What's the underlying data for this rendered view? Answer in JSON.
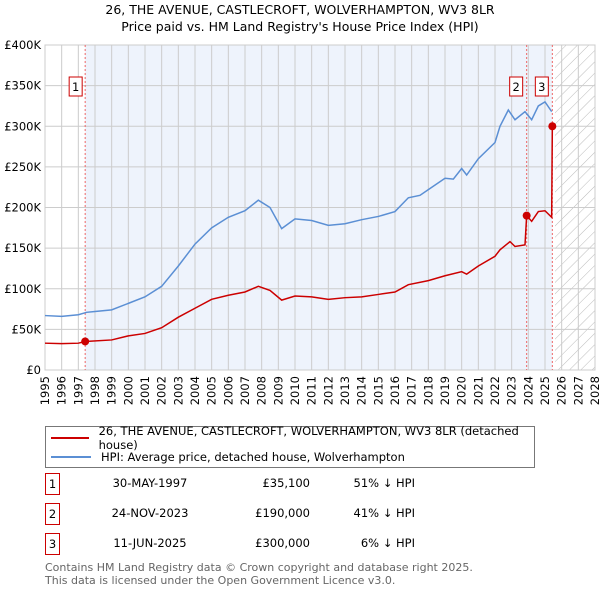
{
  "chart_data": {
    "type": "line",
    "title": "26, THE AVENUE, CASTLECROFT, WOLVERHAMPTON, WV3 8LR",
    "subtitle": "Price paid vs. HM Land Registry's House Price Index (HPI)",
    "xlim": [
      1995,
      2028
    ],
    "ylim": [
      0,
      400000
    ],
    "x_ticks": [
      "1995",
      "1996",
      "1997",
      "1998",
      "1999",
      "2000",
      "2001",
      "2002",
      "2003",
      "2004",
      "2005",
      "2006",
      "2007",
      "2008",
      "2009",
      "2010",
      "2011",
      "2012",
      "2013",
      "2014",
      "2015",
      "2016",
      "2017",
      "2018",
      "2019",
      "2020",
      "2021",
      "2022",
      "2023",
      "2024",
      "2025",
      "2026",
      "2027",
      "2028"
    ],
    "y_ticks": [
      {
        "v": 0,
        "label": "£0"
      },
      {
        "v": 50000,
        "label": "£50K"
      },
      {
        "v": 100000,
        "label": "£100K"
      },
      {
        "v": 150000,
        "label": "£150K"
      },
      {
        "v": 200000,
        "label": "£200K"
      },
      {
        "v": 250000,
        "label": "£250K"
      },
      {
        "v": 300000,
        "label": "£300K"
      },
      {
        "v": 350000,
        "label": "£350K"
      },
      {
        "v": 400000,
        "label": "£400K"
      }
    ],
    "grid": true,
    "series": [
      {
        "name": "26, THE AVENUE, CASTLECROFT, WOLVERHAMPTON, WV3 8LR (detached house)",
        "color": "#cc0000",
        "points": [
          [
            1995,
            33000
          ],
          [
            1996,
            32500
          ],
          [
            1997,
            33000
          ],
          [
            1997.41,
            35100
          ],
          [
            1999,
            37000
          ],
          [
            2000,
            42000
          ],
          [
            2001,
            45000
          ],
          [
            2002,
            52000
          ],
          [
            2003,
            65000
          ],
          [
            2004,
            76000
          ],
          [
            2005,
            87000
          ],
          [
            2006,
            92000
          ],
          [
            2007,
            96000
          ],
          [
            2007.8,
            103000
          ],
          [
            2008.5,
            98000
          ],
          [
            2009.2,
            86000
          ],
          [
            2010,
            91000
          ],
          [
            2011,
            90000
          ],
          [
            2012,
            87000
          ],
          [
            2013,
            89000
          ],
          [
            2014,
            90000
          ],
          [
            2015,
            93000
          ],
          [
            2016,
            96000
          ],
          [
            2016.8,
            105000
          ],
          [
            2018,
            110000
          ],
          [
            2019,
            116000
          ],
          [
            2020,
            121000
          ],
          [
            2020.3,
            118000
          ],
          [
            2021,
            128000
          ],
          [
            2022,
            140000
          ],
          [
            2022.3,
            148000
          ],
          [
            2022.9,
            158000
          ],
          [
            2023.2,
            152000
          ],
          [
            2023.8,
            154000
          ],
          [
            2023.9,
            190000
          ],
          [
            2024.2,
            183000
          ],
          [
            2024.6,
            195000
          ],
          [
            2025,
            196000
          ],
          [
            2025.4,
            188000
          ],
          [
            2025.44,
            300000
          ]
        ]
      },
      {
        "name": "HPI: Average price, detached house, Wolverhampton",
        "color": "#5b8fd4",
        "points": [
          [
            1995,
            67000
          ],
          [
            1996,
            66000
          ],
          [
            1997,
            68000
          ],
          [
            1997.5,
            71000
          ],
          [
            1998,
            72000
          ],
          [
            1999,
            74000
          ],
          [
            2000,
            82000
          ],
          [
            2001,
            90000
          ],
          [
            2002,
            103000
          ],
          [
            2003,
            128000
          ],
          [
            2004,
            155000
          ],
          [
            2005,
            175000
          ],
          [
            2006,
            188000
          ],
          [
            2007,
            196000
          ],
          [
            2007.8,
            209000
          ],
          [
            2008.5,
            200000
          ],
          [
            2009.2,
            174000
          ],
          [
            2010,
            186000
          ],
          [
            2011,
            184000
          ],
          [
            2012,
            178000
          ],
          [
            2013,
            180000
          ],
          [
            2014,
            185000
          ],
          [
            2015,
            189000
          ],
          [
            2016,
            195000
          ],
          [
            2016.8,
            212000
          ],
          [
            2017.5,
            215000
          ],
          [
            2018,
            222000
          ],
          [
            2019,
            236000
          ],
          [
            2019.5,
            235000
          ],
          [
            2020,
            248000
          ],
          [
            2020.3,
            240000
          ],
          [
            2021,
            260000
          ],
          [
            2022,
            280000
          ],
          [
            2022.3,
            300000
          ],
          [
            2022.8,
            320000
          ],
          [
            2023.2,
            308000
          ],
          [
            2023.8,
            318000
          ],
          [
            2024.2,
            308000
          ],
          [
            2024.6,
            325000
          ],
          [
            2025,
            330000
          ],
          [
            2025.4,
            318000
          ]
        ]
      }
    ],
    "sales": [
      {
        "label": "1",
        "x": 1997.41,
        "y": 35100,
        "date": "30-MAY-1997",
        "price": "£35,100",
        "hpi": "51% ↓ HPI"
      },
      {
        "label": "2",
        "x": 2023.9,
        "y": 190000,
        "date": "24-NOV-2023",
        "price": "£190,000",
        "hpi": "41% ↓ HPI"
      },
      {
        "label": "3",
        "x": 2025.44,
        "y": 300000,
        "date": "11-JUN-2025",
        "price": "£300,000",
        "hpi": "6% ↓ HPI"
      }
    ],
    "shaded_range": [
      1997.41,
      2025.44
    ],
    "forecast_hatch_from": 2025.6,
    "legend_placement": "below"
  },
  "footer": {
    "line1": "Contains HM Land Registry data © Crown copyright and database right 2025.",
    "line2": "This data is licensed under the Open Government Licence v3.0."
  }
}
